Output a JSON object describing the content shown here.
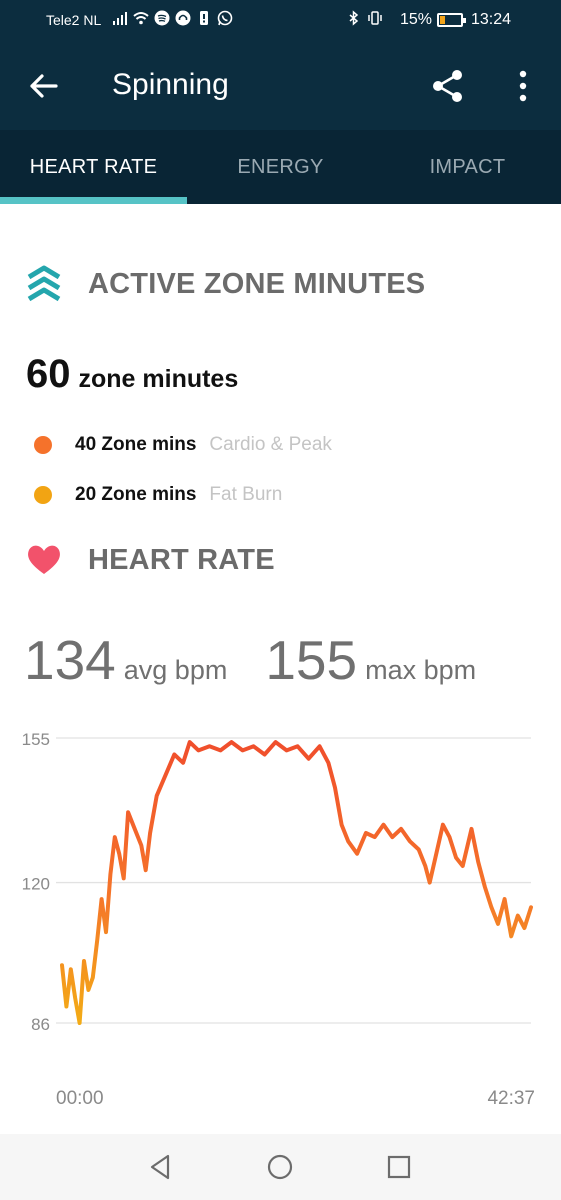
{
  "status_bar": {
    "carrier": "Tele2 NL",
    "battery_percent": "15%",
    "time": "13:24",
    "icons": [
      "signal-icon",
      "wifi-icon",
      "spotify-icon",
      "headset-icon",
      "sim-icon",
      "whatsapp-icon",
      "bluetooth-icon",
      "vibrate-icon"
    ]
  },
  "app_bar": {
    "title": "Spinning",
    "back_icon": "arrow-left-icon",
    "share_icon": "share-icon",
    "more_icon": "more-vertical-icon"
  },
  "tabs": [
    {
      "label": "HEART RATE",
      "active": true
    },
    {
      "label": "ENERGY",
      "active": false
    },
    {
      "label": "IMPACT",
      "active": false
    }
  ],
  "azm": {
    "heading": "ACTIVE ZONE MINUTES",
    "total_value": "60",
    "total_unit": "zone minutes",
    "zones": [
      {
        "value": "40 Zone mins",
        "desc": "Cardio & Peak",
        "color": "#f5722b"
      },
      {
        "value": "20 Zone mins",
        "desc": "Fat Burn",
        "color": "#f2a413"
      }
    ]
  },
  "heart_rate": {
    "heading": "HEART RATE",
    "avg_value": "134",
    "avg_label": "avg bpm",
    "max_value": "155",
    "max_label": "max bpm"
  },
  "colors": {
    "header_bg": "#0c2d3f",
    "tabs_bg": "#092535",
    "tab_indicator": "#56c3c6",
    "azm_icon": "#24a6ad",
    "heart_icon": "#f2526b",
    "line_high": "#f04d2c",
    "line_low": "#f3ab16"
  },
  "chart_data": {
    "type": "line",
    "ylim": [
      86,
      155
    ],
    "y_ticks": [
      "155",
      "120",
      "86"
    ],
    "x_tick_labels": [
      "00:00",
      "42:37"
    ],
    "x_unit": "minutes",
    "x_range": [
      0,
      42.6
    ],
    "series": [
      {
        "values": [
          [
            0,
            100
          ],
          [
            0.4,
            90
          ],
          [
            0.8,
            99
          ],
          [
            1.2,
            92
          ],
          [
            1.6,
            86
          ],
          [
            2.0,
            101
          ],
          [
            2.4,
            94
          ],
          [
            2.8,
            97
          ],
          [
            3.2,
            106
          ],
          [
            3.6,
            116
          ],
          [
            4.0,
            108
          ],
          [
            4.4,
            122
          ],
          [
            4.8,
            131
          ],
          [
            5.2,
            127
          ],
          [
            5.6,
            121
          ],
          [
            6.0,
            137
          ],
          [
            6.6,
            133
          ],
          [
            7.2,
            129
          ],
          [
            7.6,
            123
          ],
          [
            8.0,
            132
          ],
          [
            8.6,
            141
          ],
          [
            9.4,
            146
          ],
          [
            10.2,
            151
          ],
          [
            11.0,
            149
          ],
          [
            11.6,
            154
          ],
          [
            12.4,
            152
          ],
          [
            13.4,
            153
          ],
          [
            14.4,
            152
          ],
          [
            15.4,
            154
          ],
          [
            16.4,
            152
          ],
          [
            17.4,
            153
          ],
          [
            18.4,
            151
          ],
          [
            19.4,
            154
          ],
          [
            20.4,
            152
          ],
          [
            21.4,
            153
          ],
          [
            22.4,
            150
          ],
          [
            23.4,
            153
          ],
          [
            24.2,
            149
          ],
          [
            24.8,
            143
          ],
          [
            25.4,
            134
          ],
          [
            26.0,
            130
          ],
          [
            26.8,
            127
          ],
          [
            27.6,
            132
          ],
          [
            28.4,
            131
          ],
          [
            29.2,
            134
          ],
          [
            30.0,
            131
          ],
          [
            30.8,
            133
          ],
          [
            31.6,
            130
          ],
          [
            32.4,
            128
          ],
          [
            33.0,
            124
          ],
          [
            33.4,
            120
          ],
          [
            34.0,
            127
          ],
          [
            34.6,
            134
          ],
          [
            35.2,
            131
          ],
          [
            35.8,
            126
          ],
          [
            36.4,
            124
          ],
          [
            37.2,
            133
          ],
          [
            37.8,
            125
          ],
          [
            38.4,
            119
          ],
          [
            39.0,
            114
          ],
          [
            39.6,
            110
          ],
          [
            40.2,
            116
          ],
          [
            40.8,
            107
          ],
          [
            41.4,
            112
          ],
          [
            42.0,
            109
          ],
          [
            42.6,
            114
          ]
        ]
      }
    ],
    "grid": true
  },
  "nav_bar": {
    "icons": [
      "back-triangle-icon",
      "home-circle-icon",
      "recents-square-icon"
    ]
  }
}
